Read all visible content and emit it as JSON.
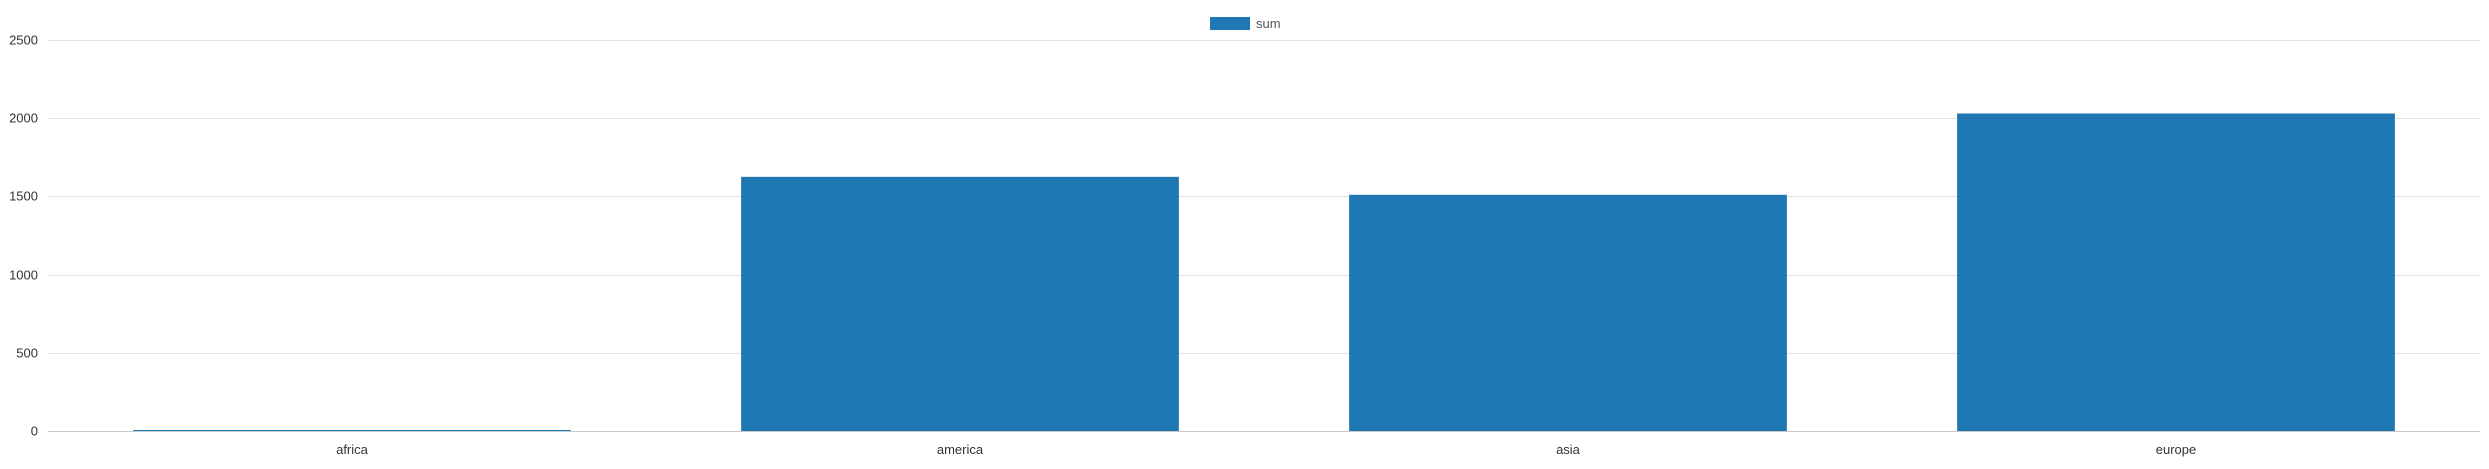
{
  "chart_data": {
    "type": "bar",
    "categories": [
      "africa",
      "america",
      "asia",
      "europe"
    ],
    "series": [
      {
        "name": "sum",
        "values": [
          5,
          1625,
          1510,
          2030
        ]
      }
    ],
    "title": "",
    "xlabel": "",
    "ylabel": "",
    "ylim": [
      0,
      2500
    ],
    "yticks": [
      0,
      500,
      1000,
      1500,
      2000,
      2500
    ],
    "grid": true,
    "legend_position": "top-center",
    "colors": {
      "sum": "#1f77b4"
    }
  }
}
